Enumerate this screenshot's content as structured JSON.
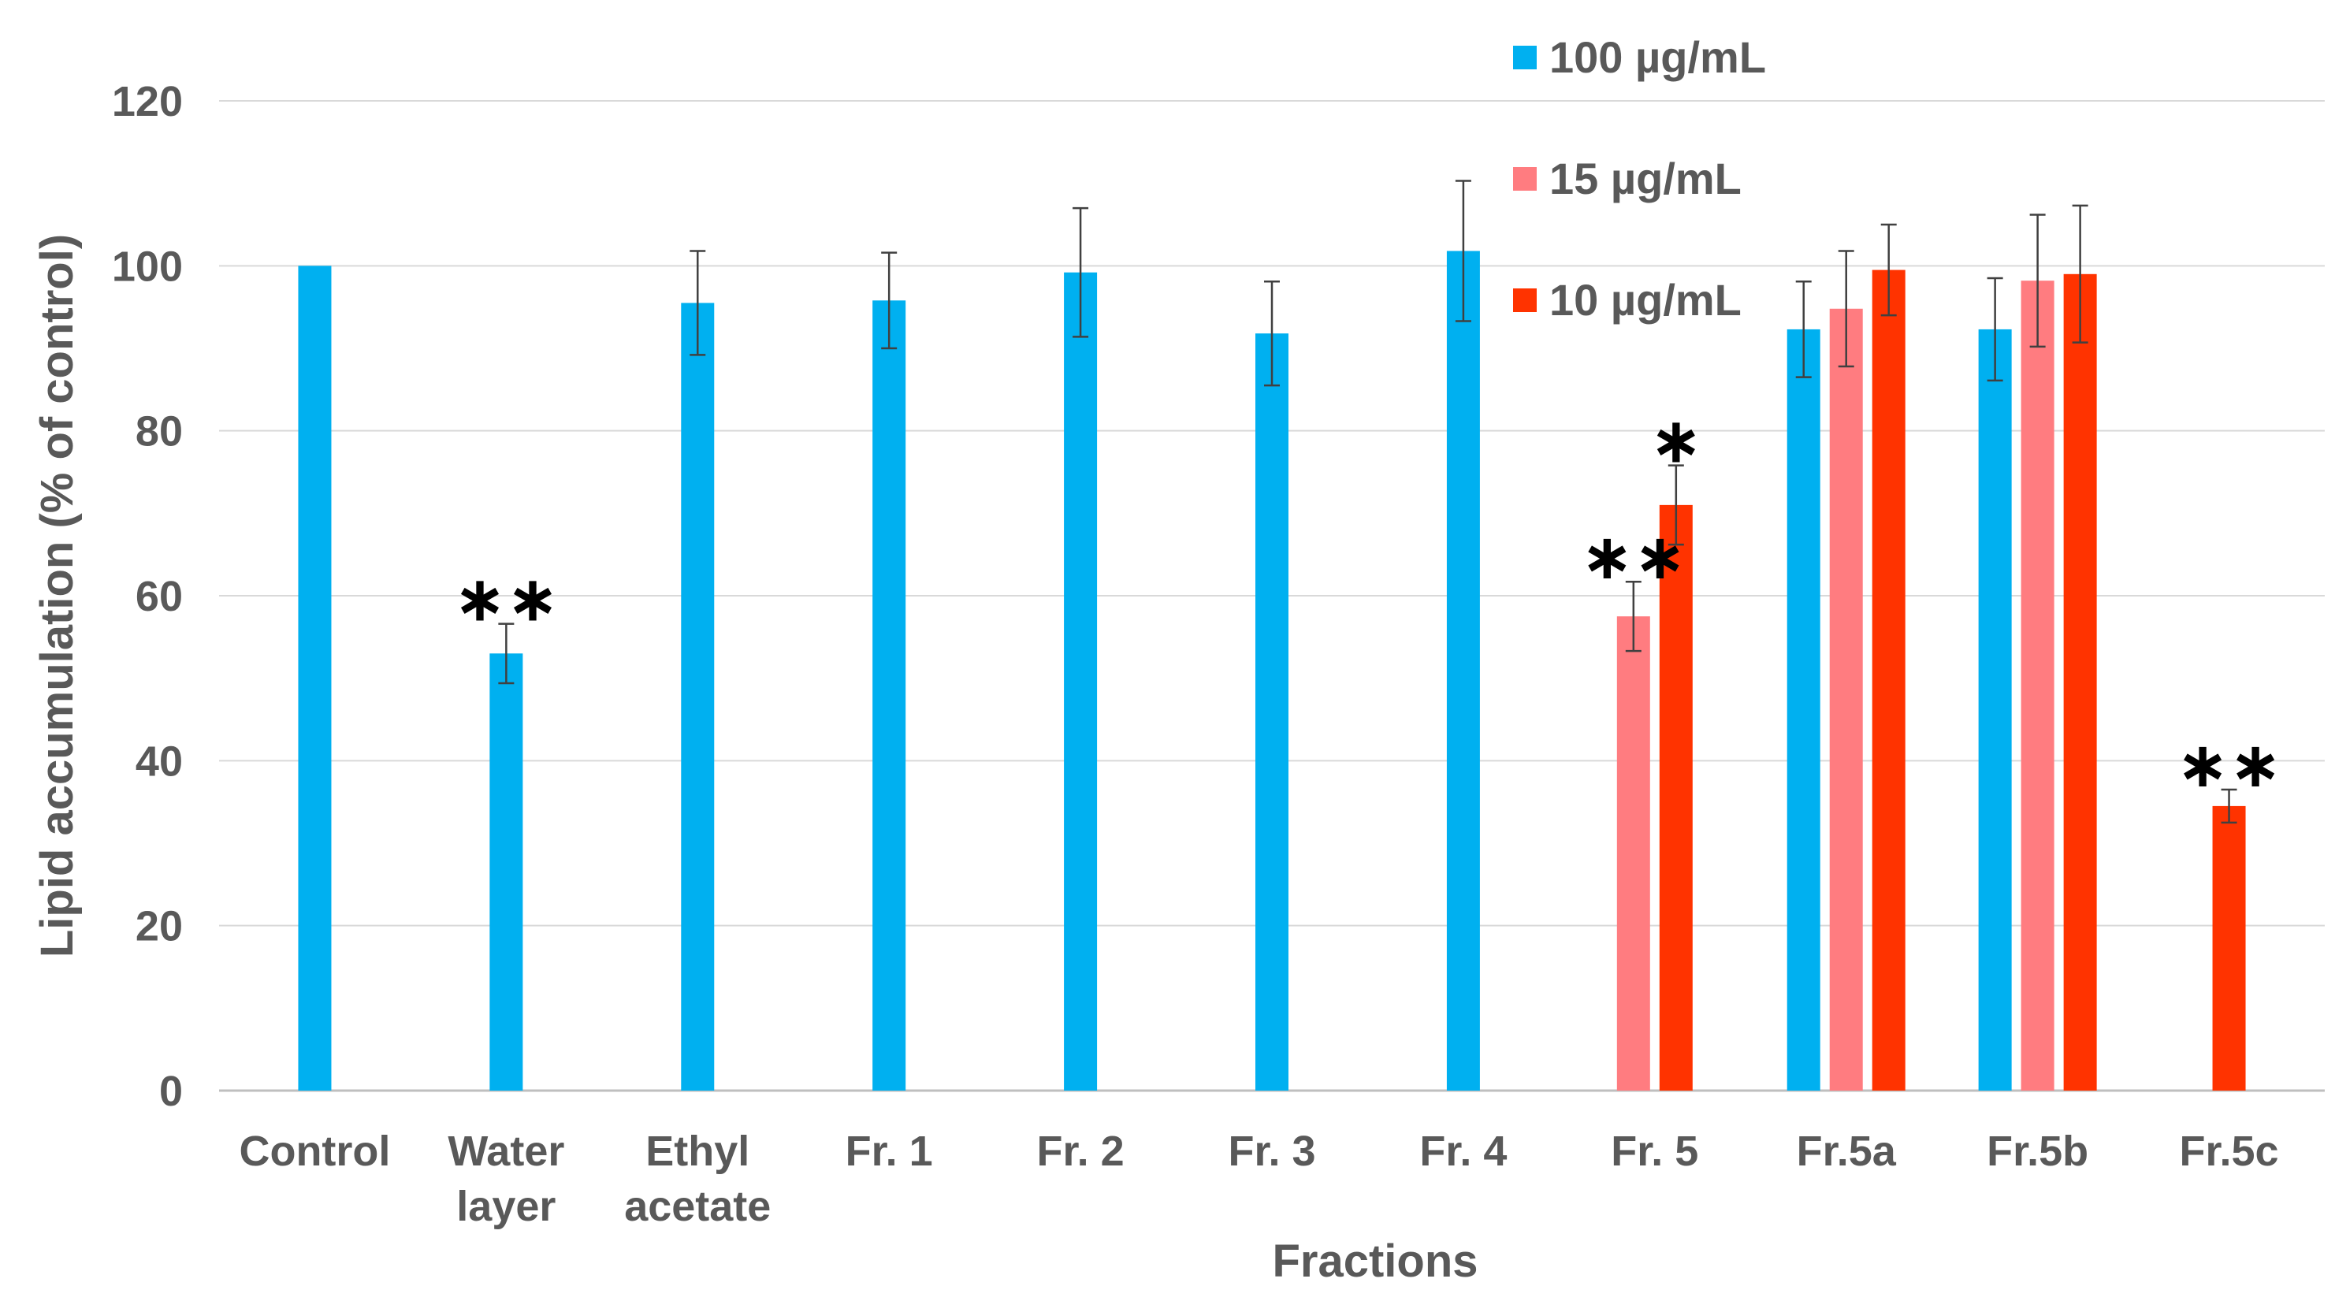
{
  "chart_data": {
    "type": "bar",
    "title": "",
    "xlabel": "Fractions",
    "ylabel": "Lipid accumulation (% of control)",
    "ylim": [
      0,
      120
    ],
    "yticks": [
      0,
      20,
      40,
      60,
      80,
      100,
      120
    ],
    "grid": true,
    "legend_position": "top-right",
    "categories": [
      [
        "Control"
      ],
      [
        "Water",
        "layer"
      ],
      [
        "Ethyl",
        "acetate"
      ],
      [
        "Fr. 1"
      ],
      [
        "Fr. 2"
      ],
      [
        "Fr. 3"
      ],
      [
        "Fr. 4"
      ],
      [
        "Fr. 5"
      ],
      [
        "Fr.5a"
      ],
      [
        "Fr.5b"
      ],
      [
        "Fr.5c"
      ]
    ],
    "series": [
      {
        "name": "100 µg/mL",
        "color": "#00B0F0",
        "values": [
          100,
          53,
          95.5,
          95.8,
          99.2,
          91.8,
          101.8,
          null,
          92.3,
          92.3,
          null
        ],
        "errors": [
          null,
          3.6,
          6.3,
          5.8,
          7.8,
          6.3,
          8.5,
          null,
          5.8,
          6.2,
          null
        ],
        "significance": [
          null,
          "∗∗",
          null,
          null,
          null,
          null,
          null,
          null,
          null,
          null,
          null
        ]
      },
      {
        "name": "15 µg/mL",
        "color": "#FF7C80",
        "values": [
          null,
          null,
          null,
          null,
          null,
          null,
          null,
          57.5,
          94.8,
          98.2,
          null
        ],
        "errors": [
          null,
          null,
          null,
          null,
          null,
          null,
          null,
          4.2,
          7,
          8,
          null
        ],
        "significance": [
          null,
          null,
          null,
          null,
          null,
          null,
          null,
          "∗∗",
          null,
          null,
          null
        ]
      },
      {
        "name": "10 µg/mL",
        "color": "#FF3300",
        "values": [
          null,
          null,
          null,
          null,
          null,
          null,
          null,
          71,
          99.5,
          99,
          34.5
        ],
        "errors": [
          null,
          null,
          null,
          null,
          null,
          null,
          null,
          4.8,
          5.5,
          8.3,
          2
        ],
        "significance": [
          null,
          null,
          null,
          null,
          null,
          null,
          null,
          "∗",
          null,
          null,
          "∗∗"
        ]
      }
    ]
  }
}
